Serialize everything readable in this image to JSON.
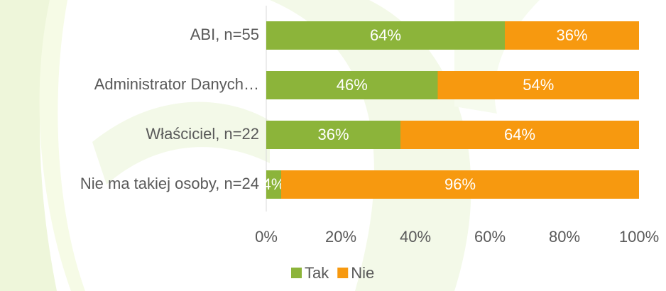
{
  "chart_data": {
    "type": "stacked-bar-horizontal",
    "categories": [
      "ABI, n=55",
      "Administrator Danych…",
      "Właściciel, n=22",
      "Nie ma takiej osoby, n=24"
    ],
    "series": [
      {
        "name": "Tak",
        "color": "#8cb43a",
        "values": [
          64,
          46,
          36,
          4
        ],
        "value_labels": [
          "64%",
          "46%",
          "36%",
          "4%"
        ]
      },
      {
        "name": "Nie",
        "color": "#f7990f",
        "values": [
          36,
          54,
          64,
          96
        ],
        "value_labels": [
          "36%",
          "54%",
          "64%",
          "96%"
        ]
      }
    ],
    "xlim": [
      0,
      100
    ],
    "xticks": [
      {
        "value": 0,
        "label": "0%"
      },
      {
        "value": 20,
        "label": "20%"
      },
      {
        "value": 40,
        "label": "40%"
      },
      {
        "value": 60,
        "label": "60%"
      },
      {
        "value": 80,
        "label": "80%"
      },
      {
        "value": 100,
        "label": "100%"
      }
    ],
    "legend": "bottom"
  }
}
